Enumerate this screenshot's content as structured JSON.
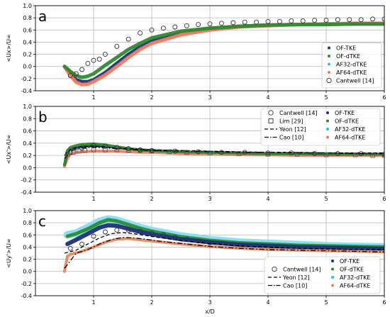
{
  "figure": {
    "xlabel": "x/D"
  },
  "chart_data": [
    {
      "panel_letter": "a",
      "type": "scatter",
      "ylabel": "<Ux>/U∞",
      "xlim": [
        0,
        6
      ],
      "ylim": [
        -0.4,
        1.0
      ],
      "xticks": [
        1,
        2,
        3,
        4,
        5,
        6
      ],
      "yticks": [
        -0.4,
        -0.2,
        0.0,
        0.2,
        0.4,
        0.6,
        0.8,
        1.0
      ],
      "show_xticklabels": true,
      "grid": true,
      "legend_position": "lower-right",
      "legend": [
        {
          "label": "OF-TKE",
          "color": "#1f2f7a",
          "marker": "dot"
        },
        {
          "label": "OF-dTKE",
          "color": "#2e8b2e",
          "marker": "dot"
        },
        {
          "label": "AF32-dTKE",
          "color": "#25c0e6",
          "marker": "dot"
        },
        {
          "label": "AF64-dTKE",
          "color": "#f27a5e",
          "marker": "dot"
        },
        {
          "label": "Cantwell [14]",
          "color": "#333333",
          "marker": "circle"
        }
      ],
      "series": [
        {
          "name": "OF-TKE",
          "style": "band",
          "color": "#1f2f7a",
          "width": 5,
          "x": [
            0.5,
            0.6,
            0.7,
            0.8,
            0.9,
            1.0,
            1.2,
            1.4,
            1.6,
            1.8,
            2.0,
            2.5,
            3.0,
            3.5,
            4.0,
            4.5,
            5.0,
            5.5,
            6.0
          ],
          "y": [
            0.0,
            -0.12,
            -0.22,
            -0.25,
            -0.25,
            -0.22,
            -0.1,
            0.05,
            0.2,
            0.32,
            0.42,
            0.55,
            0.62,
            0.66,
            0.68,
            0.69,
            0.7,
            0.7,
            0.7
          ]
        },
        {
          "name": "AF64-dTKE",
          "style": "band",
          "color": "#f27a5e",
          "width": 5,
          "x": [
            0.5,
            0.6,
            0.7,
            0.8,
            0.9,
            1.0,
            1.2,
            1.4,
            1.6,
            1.8,
            2.0,
            2.5,
            3.0,
            3.5,
            4.0,
            4.5,
            5.0,
            5.5,
            6.0
          ],
          "y": [
            0.0,
            -0.15,
            -0.26,
            -0.3,
            -0.29,
            -0.25,
            -0.14,
            0.0,
            0.15,
            0.28,
            0.38,
            0.52,
            0.6,
            0.65,
            0.67,
            0.69,
            0.7,
            0.71,
            0.71
          ]
        },
        {
          "name": "OF-dTKE",
          "style": "band",
          "color": "#2e8b2e",
          "width": 5,
          "x": [
            0.5,
            0.6,
            0.7,
            0.8,
            0.9,
            1.0,
            1.2,
            1.4,
            1.6,
            1.8,
            2.0,
            2.5,
            3.0,
            3.5,
            4.0,
            4.5,
            5.0,
            5.5,
            6.0
          ],
          "y": [
            0.0,
            -0.08,
            -0.15,
            -0.18,
            -0.16,
            -0.12,
            0.02,
            0.15,
            0.28,
            0.38,
            0.47,
            0.58,
            0.63,
            0.66,
            0.68,
            0.69,
            0.69,
            0.7,
            0.7
          ]
        },
        {
          "name": "Cantwell [14]",
          "style": "circles",
          "color": "#333333",
          "x": [
            0.6,
            0.7,
            0.8,
            0.9,
            1.0,
            1.1,
            1.2,
            1.4,
            1.6,
            1.8,
            2.0,
            2.2,
            2.4,
            2.6,
            2.8,
            3.0,
            3.2,
            3.4,
            3.6,
            3.8,
            4.0,
            4.2,
            4.4,
            4.6,
            4.8,
            5.0,
            5.2,
            5.4,
            5.6,
            5.8,
            6.0
          ],
          "y": [
            -0.15,
            -0.12,
            -0.05,
            0.05,
            0.1,
            0.12,
            0.2,
            0.33,
            0.45,
            0.55,
            0.6,
            0.63,
            0.65,
            0.67,
            0.69,
            0.7,
            0.71,
            0.72,
            0.73,
            0.73,
            0.74,
            0.74,
            0.75,
            0.75,
            0.76,
            0.76,
            0.77,
            0.77,
            0.77,
            0.78,
            0.78
          ]
        }
      ]
    },
    {
      "panel_letter": "b",
      "type": "scatter",
      "ylabel": "<Ux'>/U∞",
      "xlim": [
        0,
        6
      ],
      "ylim": [
        -0.4,
        1.0
      ],
      "xticks": [
        1,
        2,
        3,
        4,
        5,
        6
      ],
      "yticks": [
        -0.4,
        -0.2,
        0.0,
        0.2,
        0.4,
        0.6,
        0.8,
        1.0
      ],
      "show_xticklabels": true,
      "grid": true,
      "legend_position": "top-right",
      "legend": [
        {
          "label": "Cantwell [14]",
          "color": "#333333",
          "marker": "circle"
        },
        {
          "label": "Lim [29]",
          "color": "#333333",
          "marker": "square"
        },
        {
          "label": "Yeon [12]",
          "color": "#000000",
          "marker": "dash"
        },
        {
          "label": "Cao [10]",
          "color": "#000000",
          "marker": "dashdot"
        },
        {
          "label": "OF-TKE",
          "color": "#1f2f7a",
          "marker": "dot"
        },
        {
          "label": "OF-dTKE",
          "color": "#2e8b2e",
          "marker": "dot"
        },
        {
          "label": "AF32-dTKE",
          "color": "#25c0e6",
          "marker": "dot"
        },
        {
          "label": "AF64-dTKE",
          "color": "#f27a5e",
          "marker": "dot"
        }
      ],
      "series": [
        {
          "name": "AF64-dTKE",
          "style": "band",
          "color": "#f27a5e",
          "width": 4,
          "x": [
            0.5,
            0.55,
            0.6,
            0.7,
            0.8,
            1.0,
            1.2,
            1.4,
            1.6,
            1.8,
            2.0,
            2.5,
            3.0,
            3.5,
            4.0,
            4.5,
            5.0,
            5.5,
            6.0
          ],
          "y": [
            0.02,
            0.15,
            0.22,
            0.25,
            0.26,
            0.27,
            0.27,
            0.27,
            0.26,
            0.25,
            0.25,
            0.23,
            0.22,
            0.21,
            0.21,
            0.2,
            0.2,
            0.2,
            0.2
          ]
        },
        {
          "name": "OF-TKE",
          "style": "band",
          "color": "#1f2f7a",
          "width": 4,
          "x": [
            0.5,
            0.55,
            0.6,
            0.7,
            0.8,
            1.0,
            1.2,
            1.4,
            1.6,
            1.8,
            2.0,
            2.5,
            3.0,
            3.5,
            4.0,
            4.5,
            5.0,
            5.5,
            6.0
          ],
          "y": [
            0.05,
            0.25,
            0.3,
            0.33,
            0.35,
            0.36,
            0.35,
            0.33,
            0.31,
            0.29,
            0.28,
            0.26,
            0.25,
            0.24,
            0.23,
            0.23,
            0.22,
            0.22,
            0.22
          ]
        },
        {
          "name": "OF-dTKE",
          "style": "band",
          "color": "#2e8b2e",
          "width": 4,
          "x": [
            0.5,
            0.55,
            0.6,
            0.7,
            0.8,
            1.0,
            1.2,
            1.4,
            1.6,
            1.8,
            2.0,
            2.5,
            3.0,
            3.5,
            4.0,
            4.5,
            5.0,
            5.5,
            6.0
          ],
          "y": [
            0.05,
            0.28,
            0.33,
            0.36,
            0.38,
            0.39,
            0.37,
            0.34,
            0.31,
            0.29,
            0.28,
            0.26,
            0.25,
            0.24,
            0.23,
            0.23,
            0.23,
            0.22,
            0.22
          ]
        },
        {
          "name": "Yeon [12]",
          "style": "dash",
          "color": "#000000",
          "x": [
            0.5,
            0.6,
            0.7,
            0.8,
            1.0,
            1.2,
            1.4,
            1.6,
            1.8,
            2.0,
            2.5,
            3.0,
            3.5,
            4.0,
            4.5,
            5.0,
            5.5,
            6.0
          ],
          "y": [
            0.2,
            0.3,
            0.33,
            0.34,
            0.35,
            0.34,
            0.32,
            0.31,
            0.3,
            0.29,
            0.28,
            0.27,
            0.26,
            0.25,
            0.25,
            0.24,
            0.24,
            0.24
          ]
        },
        {
          "name": "Cao [10]",
          "style": "dashdot",
          "color": "#000000",
          "x": [
            0.5,
            0.6,
            0.7,
            0.8,
            1.0,
            1.2,
            1.4,
            1.6,
            1.8,
            2.0,
            2.5,
            3.0,
            3.5,
            4.0,
            4.5,
            5.0,
            5.5,
            6.0
          ],
          "y": [
            0.15,
            0.26,
            0.3,
            0.32,
            0.33,
            0.32,
            0.31,
            0.3,
            0.29,
            0.28,
            0.27,
            0.26,
            0.25,
            0.25,
            0.24,
            0.24,
            0.23,
            0.23
          ]
        },
        {
          "name": "Lim [29]",
          "style": "squares",
          "color": "#555555",
          "x": [
            0.55,
            0.65,
            0.75,
            0.85,
            1.0,
            1.2,
            1.4,
            1.6,
            1.8,
            2.0,
            2.3,
            2.6,
            3.0,
            3.5,
            4.0,
            4.5,
            5.0,
            5.5,
            5.8,
            6.0
          ],
          "y": [
            0.22,
            0.25,
            0.27,
            0.28,
            0.29,
            0.29,
            0.29,
            0.28,
            0.28,
            0.27,
            0.26,
            0.25,
            0.24,
            0.23,
            0.22,
            0.22,
            0.21,
            0.21,
            0.2,
            0.2
          ]
        },
        {
          "name": "Cantwell [14]",
          "style": "circles",
          "color": "#333333",
          "x": [
            0.6,
            0.8,
            1.0,
            1.2,
            1.4,
            1.6,
            1.8,
            2.0,
            2.4,
            2.8,
            3.2,
            3.6,
            4.0,
            4.4,
            4.8,
            5.2,
            5.6,
            6.0
          ],
          "y": [
            0.25,
            0.32,
            0.36,
            0.35,
            0.33,
            0.31,
            0.29,
            0.28,
            0.27,
            0.26,
            0.25,
            0.25,
            0.24,
            0.24,
            0.23,
            0.23,
            0.23,
            0.22
          ]
        }
      ]
    },
    {
      "panel_letter": "c",
      "type": "scatter",
      "ylabel": "<Uy'>/U∞",
      "xlim": [
        0,
        6
      ],
      "ylim": [
        -0.4,
        1.0
      ],
      "xticks": [
        1,
        2,
        3,
        4,
        5,
        6
      ],
      "yticks": [
        -0.4,
        -0.2,
        0.0,
        0.2,
        0.4,
        0.6,
        0.8,
        1.0
      ],
      "show_xticklabels": true,
      "grid": true,
      "legend_position": "lower-right",
      "legend": [
        {
          "label": "Cantwell [14]",
          "color": "#333333",
          "marker": "circle"
        },
        {
          "label": "Yeon [12]",
          "color": "#000000",
          "marker": "dash"
        },
        {
          "label": "Cao [10]",
          "color": "#000000",
          "marker": "dashdot"
        },
        {
          "label": "OF-TKE",
          "color": "#1f2f7a",
          "marker": "dot"
        },
        {
          "label": "OF-dTKE",
          "color": "#2e8b2e",
          "marker": "dot"
        },
        {
          "label": "AF32-dTKE",
          "color": "#25c0e6",
          "marker": "dot"
        },
        {
          "label": "AF64-dTKE",
          "color": "#e8875a",
          "marker": "dot"
        }
      ],
      "series": [
        {
          "name": "AF32-dTKE",
          "style": "band",
          "color": "#7fe0f2",
          "width": 11,
          "x": [
            0.55,
            0.7,
            0.9,
            1.1,
            1.25,
            1.4,
            1.6,
            1.8,
            2.0,
            2.5,
            3.0,
            3.5,
            4.0,
            4.5,
            5.0,
            5.5,
            6.0
          ],
          "y": [
            0.6,
            0.63,
            0.72,
            0.82,
            0.86,
            0.84,
            0.78,
            0.72,
            0.67,
            0.58,
            0.52,
            0.48,
            0.46,
            0.44,
            0.42,
            0.41,
            0.4
          ]
        },
        {
          "name": "OF-dTKE",
          "style": "band",
          "color": "#2e8b2e",
          "width": 5,
          "x": [
            0.55,
            0.7,
            0.9,
            1.1,
            1.25,
            1.4,
            1.6,
            1.8,
            2.0,
            2.5,
            3.0,
            3.5,
            4.0,
            4.5,
            5.0,
            5.5,
            6.0
          ],
          "y": [
            0.58,
            0.62,
            0.7,
            0.8,
            0.85,
            0.83,
            0.77,
            0.71,
            0.66,
            0.57,
            0.51,
            0.47,
            0.45,
            0.43,
            0.42,
            0.41,
            0.4
          ]
        },
        {
          "name": "OF-TKE",
          "style": "band",
          "color": "#1f2f7a",
          "width": 6,
          "x": [
            0.55,
            0.7,
            0.9,
            1.1,
            1.25,
            1.4,
            1.6,
            1.8,
            2.0,
            2.5,
            3.0,
            3.5,
            4.0,
            4.5,
            5.0,
            5.5,
            6.0
          ],
          "y": [
            0.45,
            0.52,
            0.62,
            0.72,
            0.76,
            0.75,
            0.7,
            0.65,
            0.61,
            0.53,
            0.48,
            0.44,
            0.42,
            0.4,
            0.39,
            0.38,
            0.37
          ]
        },
        {
          "name": "AF64-dTKE",
          "style": "band",
          "color": "#e8875a",
          "width": 4,
          "x": [
            0.5,
            0.55,
            0.6,
            0.8,
            1.0,
            1.2,
            1.4,
            1.6,
            1.8,
            2.0,
            2.5,
            3.0,
            3.5,
            4.0,
            4.5,
            5.0,
            5.5,
            6.0
          ],
          "y": [
            0.0,
            0.25,
            0.28,
            0.33,
            0.4,
            0.48,
            0.53,
            0.54,
            0.52,
            0.5,
            0.45,
            0.41,
            0.38,
            0.36,
            0.35,
            0.34,
            0.33,
            0.32
          ]
        },
        {
          "name": "Yeon [12]",
          "style": "dash",
          "color": "#000000",
          "x": [
            0.5,
            0.7,
            0.9,
            1.1,
            1.3,
            1.5,
            1.7,
            1.9,
            2.1,
            2.5,
            3.0,
            3.5,
            4.0,
            4.5,
            5.0,
            5.5,
            6.0
          ],
          "y": [
            0.3,
            0.35,
            0.45,
            0.55,
            0.62,
            0.64,
            0.62,
            0.59,
            0.56,
            0.51,
            0.46,
            0.42,
            0.4,
            0.38,
            0.37,
            0.36,
            0.36
          ]
        },
        {
          "name": "Cao [10]",
          "style": "dashdot",
          "color": "#000000",
          "x": [
            0.5,
            0.7,
            0.9,
            1.1,
            1.3,
            1.5,
            1.7,
            1.9,
            2.1,
            2.5,
            3.0,
            3.5,
            4.0,
            4.5,
            5.0,
            5.5,
            6.0
          ],
          "y": [
            0.05,
            0.3,
            0.36,
            0.45,
            0.52,
            0.56,
            0.55,
            0.53,
            0.5,
            0.46,
            0.41,
            0.38,
            0.36,
            0.35,
            0.34,
            0.33,
            0.32
          ]
        },
        {
          "name": "Cantwell [14]",
          "style": "circles",
          "color": "#333333",
          "x": [
            0.6,
            0.8,
            1.0,
            1.2,
            1.4,
            1.6,
            1.8,
            2.0,
            2.2,
            2.4,
            2.6,
            2.8,
            3.0
          ],
          "y": [
            0.38,
            0.45,
            0.58,
            0.65,
            0.68,
            0.68,
            0.66,
            0.63,
            0.6,
            0.56,
            0.53,
            0.5,
            0.47
          ]
        }
      ]
    }
  ]
}
